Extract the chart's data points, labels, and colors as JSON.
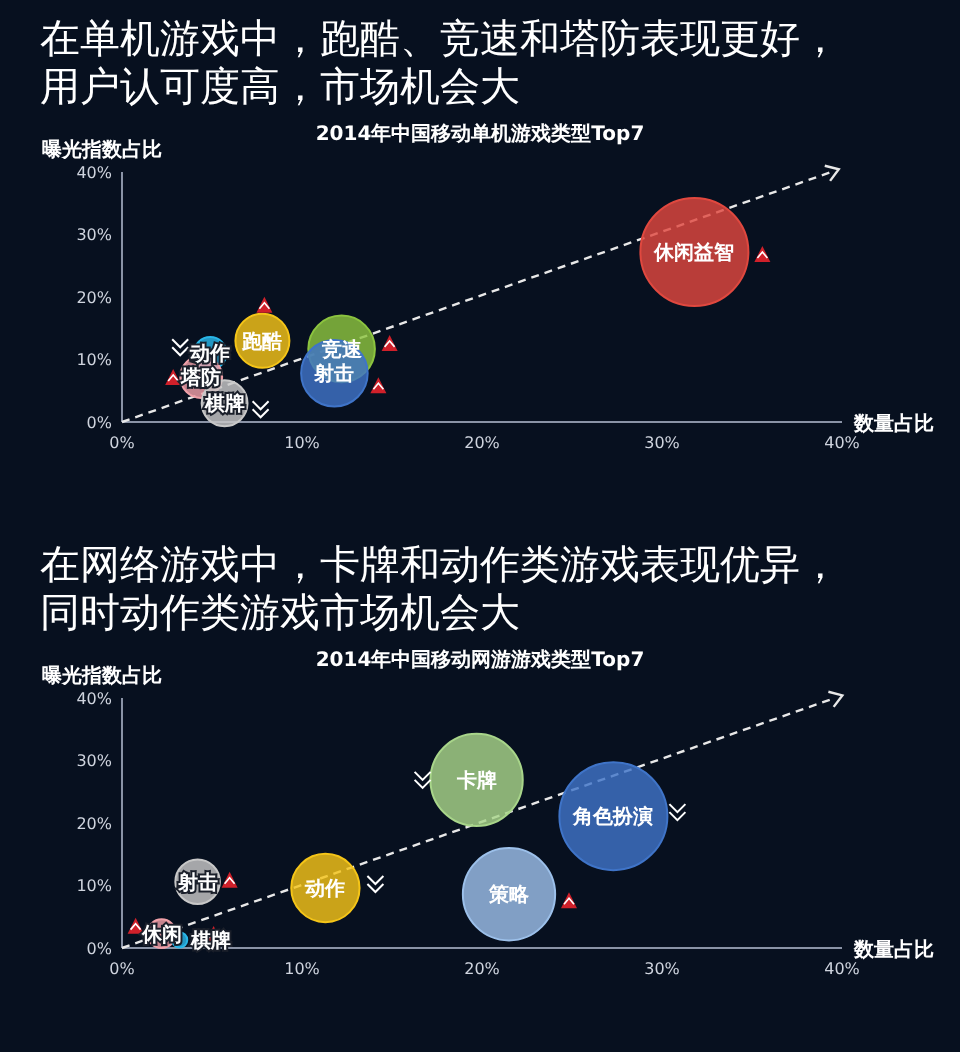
{
  "chart_data": [
    {
      "type": "bubble",
      "title": "在单机游戏中，跑酷、竞速和塔防表现更好，用户认可度高，市场机会大",
      "subtitle": "2014年中国移动单机游戏类型Top7",
      "xlabel": "数量占比",
      "ylabel": "曝光指数占比",
      "xlim": [
        0,
        40
      ],
      "ylim": [
        0,
        40
      ],
      "xticks": [
        {
          "value": 0,
          "label": "0%"
        },
        {
          "value": 10,
          "label": "10%"
        },
        {
          "value": 20,
          "label": "20%"
        },
        {
          "value": 30,
          "label": "30%"
        },
        {
          "value": 40,
          "label": "40%"
        }
      ],
      "yticks": [
        {
          "value": 0,
          "label": "0%"
        },
        {
          "value": 10,
          "label": "10%"
        },
        {
          "value": 20,
          "label": "20%"
        },
        {
          "value": 30,
          "label": "30%"
        },
        {
          "value": 40,
          "label": "40%"
        }
      ],
      "legend": false,
      "series": [
        {
          "name": "休闲益智",
          "color": "#e0483f",
          "x": [
            31.8
          ],
          "values": [
            27.2
          ],
          "sizes": [
            1
          ]
        },
        {
          "name": "跑酷",
          "color": "#f5c518",
          "x": [
            7.8
          ],
          "values": [
            13.0
          ],
          "sizes": [
            0.25
          ]
        },
        {
          "name": "竞速",
          "color": "#8cc43f",
          "x": [
            12.2
          ],
          "values": [
            11.7
          ],
          "sizes": [
            0.38
          ]
        },
        {
          "name": "射击",
          "color": "#3f74c8",
          "x": [
            11.8
          ],
          "values": [
            7.8
          ],
          "sizes": [
            0.38
          ]
        },
        {
          "name": "动作",
          "color": "#29b6e8",
          "x": [
            4.9
          ],
          "values": [
            11.0
          ],
          "sizes": [
            0.09
          ]
        },
        {
          "name": "塔防",
          "color": "#f0a0a8",
          "x": [
            4.4
          ],
          "values": [
            7.2
          ],
          "sizes": [
            0.15
          ]
        },
        {
          "name": "棋牌",
          "color": "#c8c8c8",
          "x": [
            5.7
          ],
          "values": [
            3.0
          ],
          "sizes": [
            0.18
          ]
        },
        {
          "type": "line",
          "color": "#e8e8e8",
          "line_style": "dashed",
          "x": [
            0,
            39.4
          ],
          "values": [
            0,
            40
          ]
        }
      ]
    },
    {
      "type": "bubble",
      "title": "在网络游戏中，卡牌和动作类游戏表现优异，同时动作类游戏市场机会大",
      "subtitle": "2014年中国移动网游游戏类型Top7",
      "xlabel": "数量占比",
      "ylabel": "曝光指数占比",
      "xlim": [
        0,
        40
      ],
      "ylim": [
        0,
        40
      ],
      "xticks": [
        {
          "value": 0,
          "label": "0%"
        },
        {
          "value": 10,
          "label": "10%"
        },
        {
          "value": 20,
          "label": "20%"
        },
        {
          "value": 30,
          "label": "30%"
        },
        {
          "value": 40,
          "label": "40%"
        }
      ],
      "yticks": [
        {
          "value": 0,
          "label": "0%"
        },
        {
          "value": 10,
          "label": "10%"
        },
        {
          "value": 20,
          "label": "20%"
        },
        {
          "value": 30,
          "label": "30%"
        },
        {
          "value": 40,
          "label": "40%"
        }
      ],
      "legend": false,
      "series": [
        {
          "name": "卡牌",
          "color": "#a8d58a",
          "x": [
            19.7
          ],
          "values": [
            26.9
          ],
          "sizes": [
            0.73
          ]
        },
        {
          "name": "角色扮演",
          "color": "#3f74c8",
          "x": [
            27.3
          ],
          "values": [
            21.1
          ],
          "sizes": [
            1
          ]
        },
        {
          "name": "策略",
          "color": "#9cc0ea",
          "x": [
            21.5
          ],
          "values": [
            8.6
          ],
          "sizes": [
            0.73
          ]
        },
        {
          "name": "动作",
          "color": "#f5c518",
          "x": [
            11.3
          ],
          "values": [
            9.6
          ],
          "sizes": [
            0.4
          ]
        },
        {
          "name": "射击",
          "color": "#c8c8c8",
          "x": [
            4.2
          ],
          "values": [
            10.6
          ],
          "sizes": [
            0.17
          ]
        },
        {
          "name": "休闲",
          "color": "#f0a0a8",
          "x": [
            2.2
          ],
          "values": [
            2.3
          ],
          "sizes": [
            0.07
          ]
        },
        {
          "name": "棋牌",
          "color": "#29b6e8",
          "x": [
            3.2
          ],
          "values": [
            1.3
          ],
          "sizes": [
            0.02
          ]
        },
        {
          "type": "line",
          "color": "#e8e8e8",
          "line_style": "dashed",
          "x": [
            0,
            39.6
          ],
          "values": [
            0,
            40
          ]
        }
      ]
    }
  ]
}
